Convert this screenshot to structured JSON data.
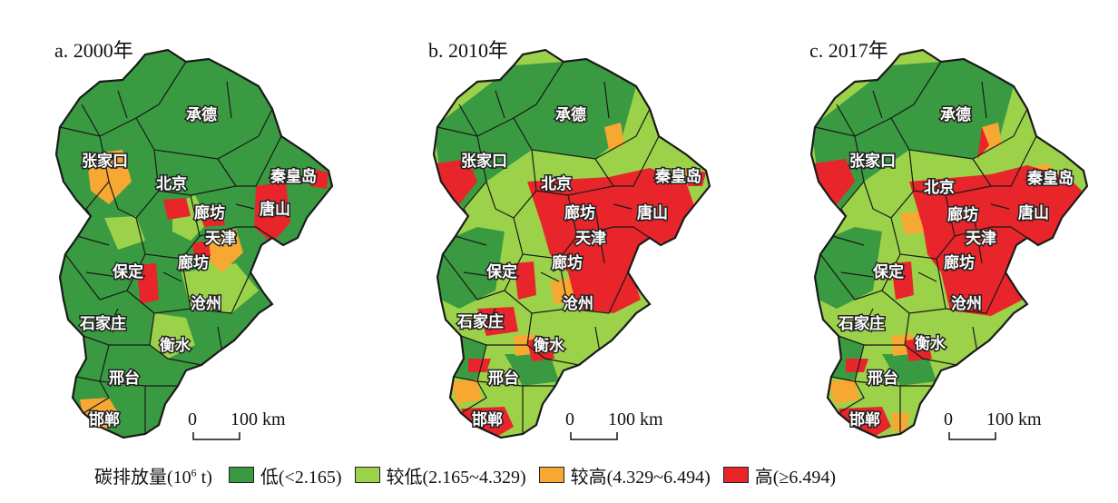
{
  "colors": {
    "low": "#3a9a42",
    "mid_low": "#9cd24a",
    "mid_high": "#f6a833",
    "high": "#e8252a",
    "border": "#1a1a1a"
  },
  "panels": [
    {
      "title": "a. 2000年",
      "key": "p2000"
    },
    {
      "title": "b. 2010年",
      "key": "p2010"
    },
    {
      "title": "c. 2017年",
      "key": "p2017"
    }
  ],
  "cities": [
    "承德",
    "张家口",
    "北京",
    "秦皇岛",
    "廊坊",
    "唐山",
    "天津",
    "保定",
    "廊坊",
    "沧州",
    "石家庄",
    "衡水",
    "邢台",
    "邯郸"
  ],
  "scale_bar": {
    "zero": "0",
    "label": "100 km"
  },
  "legend": {
    "title": "碳排放量(10",
    "title_sup": "6",
    "title_tail": " t)",
    "items": [
      {
        "label": "低(<2.165)",
        "color_key": "low"
      },
      {
        "label": "较低(2.165~4.329)",
        "color_key": "mid_low"
      },
      {
        "label": "较高(4.329~6.494)",
        "color_key": "mid_high"
      },
      {
        "label": "高(≥6.494)",
        "color_key": "high"
      }
    ]
  }
}
